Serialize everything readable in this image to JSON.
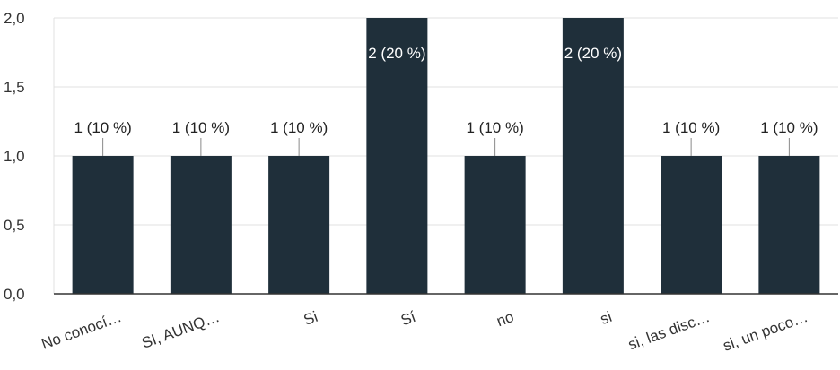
{
  "chart_data": {
    "type": "bar",
    "categories": [
      "No conocí…",
      "SI, AUNQ…",
      "Si",
      "Sí",
      "no",
      "si",
      "si, las disc…",
      "si, un poco…"
    ],
    "values": [
      1,
      1,
      1,
      2,
      1,
      2,
      1,
      1
    ],
    "data_labels": [
      "1 (10 %)",
      "1 (10 %)",
      "1 (10 %)",
      "2 (20 %)",
      "1 (10 %)",
      "2 (20 %)",
      "1 (10 %)",
      "1 (10 %)"
    ],
    "y_ticks": [
      "0,0",
      "0,5",
      "1,0",
      "1,5",
      "2,0"
    ],
    "ylim": [
      0,
      2
    ],
    "grid": true,
    "bar_color": "#1f2f3a",
    "label_color_outside": "#222222",
    "label_color_inside": "#ffffff"
  }
}
